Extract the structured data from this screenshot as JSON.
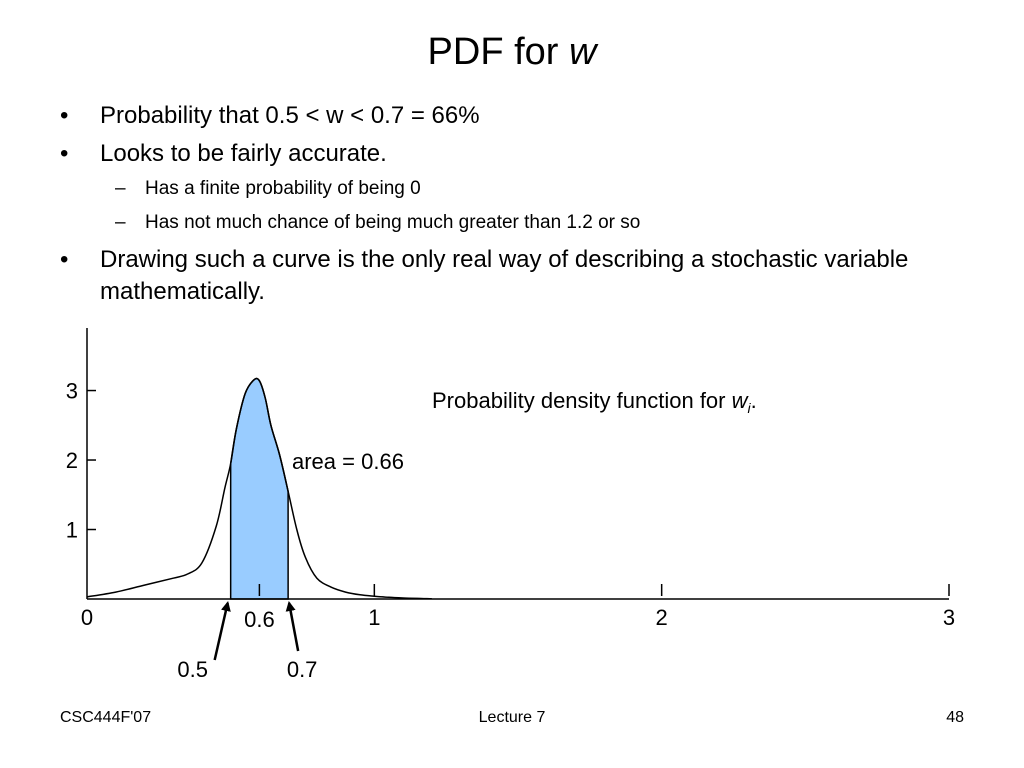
{
  "slide": {
    "title_text": "PDF for ",
    "title_var": "w",
    "bullets": [
      "Probability that 0.5 < w < 0.7 = 66%",
      "Looks to be fairly accurate.",
      "Has a finite probability of being 0",
      "Has not much chance of being much greater than 1.2 or so",
      "Drawing such a curve is the only real way of describing a stochastic variable mathematically."
    ],
    "bullet_glyph": "•",
    "dash_glyph": "–"
  },
  "chart_data": {
    "type": "area",
    "title_text": "Probability density function for ",
    "title_var": "w",
    "title_sub": "i",
    "title_end": ".",
    "x_ticks": [
      "0",
      "1",
      "2",
      "3"
    ],
    "y_ticks": [
      "1",
      "2",
      "3"
    ],
    "xlim": [
      0,
      3
    ],
    "ylim": [
      0,
      3.9
    ],
    "series": [
      {
        "x": [
          0,
          0.1,
          0.2,
          0.3,
          0.35,
          0.4,
          0.45,
          0.48,
          0.5,
          0.52,
          0.55,
          0.58,
          0.6,
          0.62,
          0.64,
          0.67,
          0.7,
          0.73,
          0.76,
          0.8,
          0.85,
          0.9,
          0.95,
          1.0,
          1.05,
          1.1,
          1.15,
          1.2
        ],
        "y": [
          0.03,
          0.1,
          0.2,
          0.3,
          0.36,
          0.52,
          1.05,
          1.6,
          1.95,
          2.45,
          2.95,
          3.15,
          3.14,
          2.9,
          2.5,
          2.08,
          1.55,
          1.0,
          0.6,
          0.3,
          0.17,
          0.1,
          0.06,
          0.04,
          0.025,
          0.015,
          0.008,
          0.003
        ]
      }
    ],
    "shaded_range": [
      0.5,
      0.7
    ],
    "area_label": "area = 0.66",
    "annotations": [
      {
        "label": "0.6",
        "x": 0.6
      },
      {
        "label": "0.5",
        "x": 0.5
      },
      {
        "label": "0.7",
        "x": 0.7
      }
    ],
    "fill_color": "#99ccff",
    "grid": false
  },
  "footer": {
    "left": "CSC444F'07",
    "center": "Lecture 7",
    "right": "48"
  }
}
